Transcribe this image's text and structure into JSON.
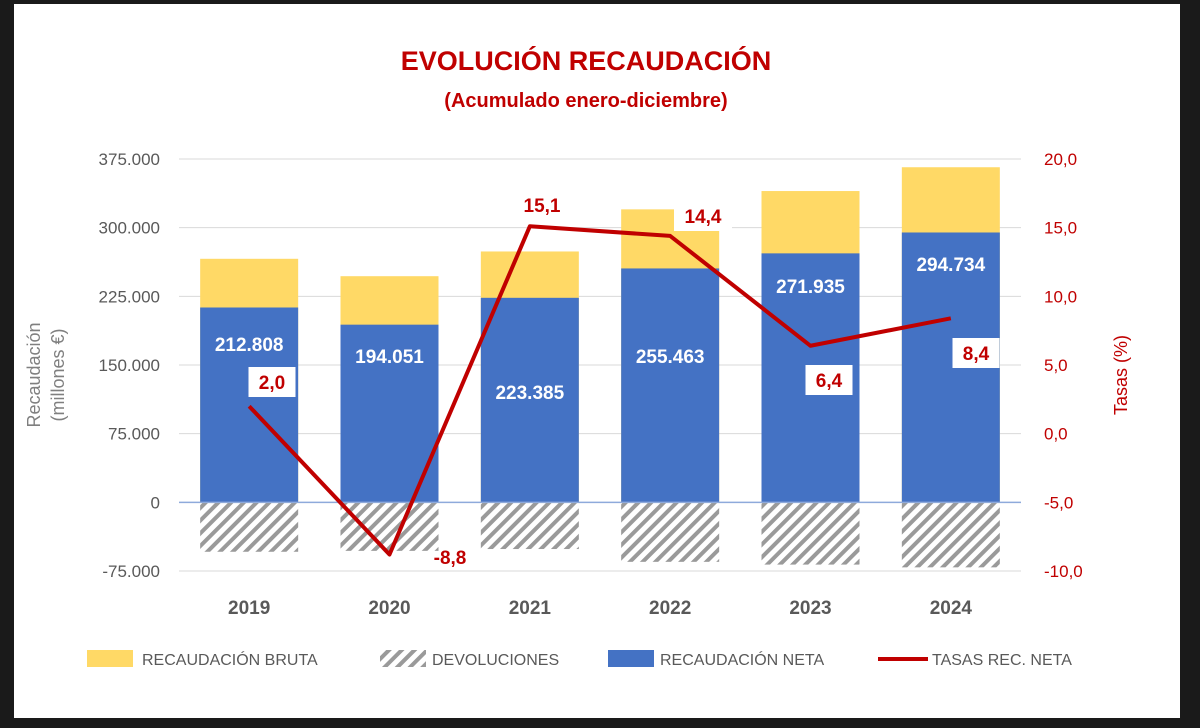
{
  "title": "EVOLUCIÓN RECAUDACIÓN",
  "subtitle": "(Acumulado enero-diciembre)",
  "chart_data": {
    "type": "bar",
    "title": "EVOLUCIÓN RECAUDACIÓN",
    "subtitle": "(Acumulado enero-diciembre)",
    "categories": [
      "2019",
      "2020",
      "2021",
      "2022",
      "2023",
      "2024"
    ],
    "ylabel_left": "Recaudación (millones €)",
    "ylabel_right": "Tasas (%)",
    "ylim_left": [
      -75000,
      375000
    ],
    "ylim_right": [
      -10,
      20
    ],
    "yticks_left": [
      "375.000",
      "300.000",
      "225.000",
      "150.000",
      "75.000",
      "0",
      "-75.000"
    ],
    "yticks_right": [
      "20,0",
      "15,0",
      "10,0",
      "5,0",
      "0,0",
      "-5,0",
      "-10,0"
    ],
    "series": [
      {
        "name": "RECAUDACIÓN BRUTA",
        "type": "bar",
        "values": [
          266000,
          247000,
          274000,
          320000,
          340000,
          366000
        ],
        "color": "#FFD966"
      },
      {
        "name": "DEVOLUCIONES",
        "type": "bar",
        "pattern": "hatch",
        "values": [
          -54000,
          -53000,
          -51000,
          -65000,
          -68000,
          -71000
        ],
        "color": "#A6A6A6"
      },
      {
        "name": "RECAUDACIÓN NETA",
        "type": "bar",
        "values": [
          212808,
          194051,
          223385,
          255463,
          271935,
          294734
        ],
        "labels": [
          "212.808",
          "194.051",
          "223.385",
          "255.463",
          "271.935",
          "294.734"
        ],
        "color": "#4472C4"
      },
      {
        "name": "TASAS REC. NETA",
        "type": "line",
        "axis": "right",
        "values": [
          2.0,
          -8.8,
          15.1,
          14.4,
          6.4,
          8.4
        ],
        "labels": [
          "2,0",
          "-8,8",
          "15,1",
          "14,4",
          "6,4",
          "8,4"
        ],
        "color": "#C00000"
      }
    ],
    "legend": [
      "RECAUDACIÓN BRUTA",
      "DEVOLUCIONES",
      "RECAUDACIÓN NETA",
      "TASAS REC. NETA"
    ],
    "legend_position": "bottom",
    "grid": true
  }
}
